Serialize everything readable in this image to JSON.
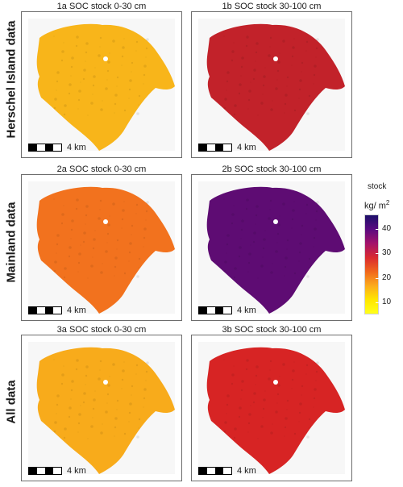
{
  "rows": [
    {
      "label": "Herschel Island data"
    },
    {
      "label": "Mainland data"
    },
    {
      "label": "All data"
    }
  ],
  "panels": [
    {
      "title": "1a SOC stock 0-30 cm",
      "fill_color": "#f8b51a",
      "stock_level": 12
    },
    {
      "title": "1b SOC stock 30-100 cm",
      "fill_color": "#c2222a",
      "stock_level": 33
    },
    {
      "title": "2a SOC stock 0-30 cm",
      "fill_color": "#f2721e",
      "stock_level": 22
    },
    {
      "title": "2b SOC stock 30-100 cm",
      "fill_color": "#5e0c73",
      "stock_level": 42
    },
    {
      "title": "3a SOC stock 0-30 cm",
      "fill_color": "#f8ab1b",
      "stock_level": 13
    },
    {
      "title": "3b SOC stock 30-100 cm",
      "fill_color": "#d72424",
      "stock_level": 31
    }
  ],
  "scale_bar": {
    "label": "4 km"
  },
  "legend": {
    "title": "stock",
    "unit": "kg/ m",
    "unit_superscript": "2",
    "ticks": [
      "40",
      "30",
      "20",
      "10"
    ],
    "range": [
      5,
      46
    ],
    "colors": [
      "#1c0f69",
      "#5a0a80",
      "#a3126b",
      "#d92a30",
      "#f0661c",
      "#fbab1d",
      "#ffe600",
      "#ffff1a"
    ]
  }
}
